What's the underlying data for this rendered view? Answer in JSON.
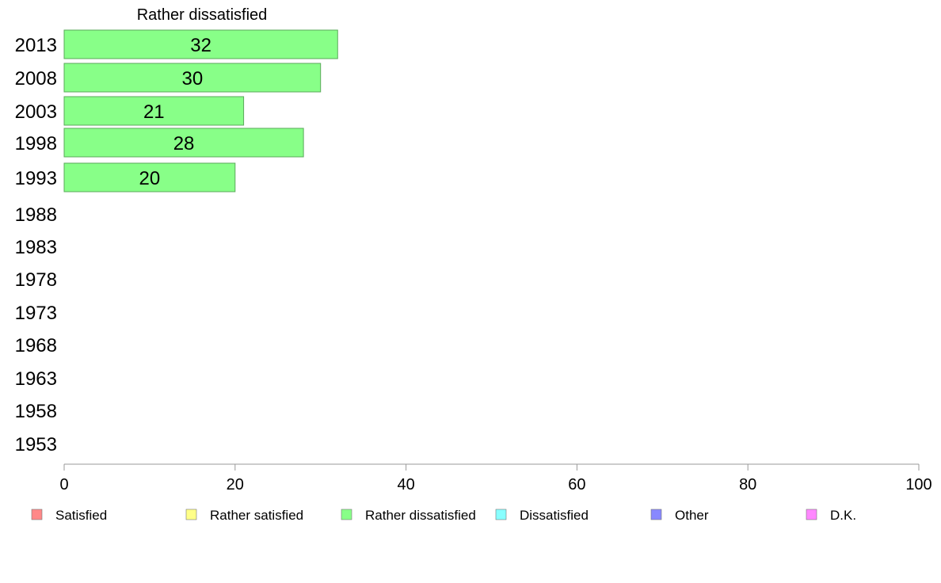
{
  "chart_data": {
    "type": "bar",
    "orientation": "horizontal",
    "title": "Rather dissatisfied",
    "categories": [
      "2013",
      "2008",
      "2003",
      "1998",
      "1993",
      "1988",
      "1983",
      "1978",
      "1973",
      "1968",
      "1963",
      "1958",
      "1953"
    ],
    "series": [
      {
        "name": "Rather dissatisfied",
        "values": [
          32,
          30,
          21,
          28,
          20,
          null,
          null,
          null,
          null,
          null,
          null,
          null,
          null
        ]
      }
    ],
    "xlim": [
      0,
      100
    ],
    "xticks": [
      "0",
      "20",
      "40",
      "60",
      "80",
      "100"
    ],
    "grid": false,
    "bar_color": "#88ff88",
    "bar_border_color": "#5aa95a",
    "legend": {
      "placement": "bottom",
      "entries": [
        {
          "label": "Satisfied",
          "color": "#ff8888"
        },
        {
          "label": "Rather satisfied",
          "color": "#ffff88"
        },
        {
          "label": "Rather dissatisfied",
          "color": "#88ff88"
        },
        {
          "label": "Dissatisfied",
          "color": "#88ffff"
        },
        {
          "label": "Other",
          "color": "#8888ff"
        },
        {
          "label": "D.K.",
          "color": "#ff88ff"
        }
      ]
    }
  }
}
